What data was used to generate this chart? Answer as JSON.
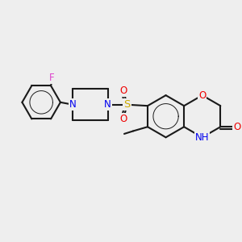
{
  "background_color": "#eeeeee",
  "bond_color": "#1a1a1a",
  "bond_lw": 1.5,
  "atom_colors": {
    "N": "#0000ee",
    "O": "#ee0000",
    "S": "#ccaa00",
    "F": "#dd44cc",
    "C": "#1a1a1a"
  },
  "fs": 8.5,
  "figsize": [
    3.0,
    3.0
  ],
  "dpi": 100
}
